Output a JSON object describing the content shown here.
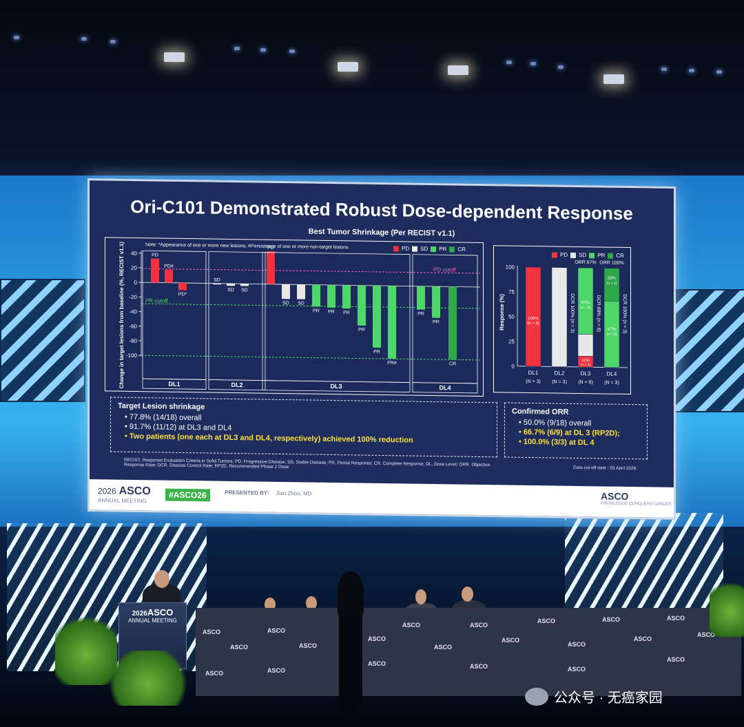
{
  "slide": {
    "title": "Ori-C101 Demonstrated Robust Dose-dependent Response",
    "subtitle": "Best Tumor Shrinkage (Per RECIST v1.1)",
    "note": "Note: *Appearance of one or more new lesions; #Persistence of one or more non-target lesions",
    "legend": [
      {
        "label": "PD",
        "color": "#ef3340"
      },
      {
        "label": "SD",
        "color": "#e8e8e8"
      },
      {
        "label": "PR",
        "color": "#4fd66b"
      },
      {
        "label": "CR",
        "color": "#2fa84a"
      }
    ],
    "waterfall": {
      "ylabel": "Change in target lesions from baseline (%, RECIST v1.1)",
      "yticks": [
        "40",
        "20",
        "0",
        "-20",
        "-40",
        "-60",
        "-80",
        "-100"
      ],
      "pd_cutoff_label": "PD cutoff",
      "pr_cutoff_label": "PR cutoff",
      "groups": [
        "DL1",
        "DL2",
        "DL3",
        "DL4"
      ]
    },
    "stacked": {
      "ylabel": "Response (%)",
      "yticks": [
        "100",
        "75",
        "50",
        "25",
        "0"
      ],
      "bars": [
        {
          "dl": "DL1",
          "n": "(N = 3)",
          "seg_label": "100%",
          "seg_n": "(n = 3)"
        },
        {
          "dl": "DL2",
          "n": "(N = 3)",
          "dcr": "DCR 100% (n = 3)"
        },
        {
          "dl": "DL3",
          "n": "(N = 9)",
          "orr": "ORR 67%",
          "dcr": "DCR 89% (n = 8)",
          "pd_pct": "11%",
          "pd_n": "(n = 1)",
          "pr_pct": "67%",
          "pr_n": "(n = 6)"
        },
        {
          "dl": "DL4",
          "n": "(N = 3)",
          "orr": "ORR 100%",
          "dcr": "DCR 100% (n = 3)",
          "cr_pct": "33%",
          "cr_n": "(n = 1)",
          "pr_pct": "67%",
          "pr_n": "(n = 2)"
        }
      ]
    },
    "target_box": {
      "title": "Target Lesion shrinkage",
      "lines": [
        "77.8% (14/18) overall",
        "91.7% (11/12) at DL3 and DL4"
      ],
      "highlight": "Two patients (one each at DL3 and DL4, respectively) achieved 100% reduction"
    },
    "orr_box": {
      "title": "Confirmed ORR",
      "line": "50.0% (9/18) overall",
      "highlights": [
        "66.7% (6/9) at DL 3 (RP2D);",
        "100.0% (3/3) at DL 4"
      ]
    },
    "abbrev": "RECIST, Response Evaluation Criteria in Solid Tumors; PD, Progressive Disease; SD, Stable Disease; PR, Partial Response; CR, Complete Response; DL, Dose Level; ORR, Objective Response Rate; DCR, Disease Control Rate; RP2D, Recommended Phase 2 Dose",
    "cutoff": "Data cut-off date : 03 April 2026",
    "footer": {
      "meeting_year": "2026",
      "meeting_brand": "ASCO",
      "meeting_sub": "ANNUAL MEETING",
      "hashtag": "#ASCO26",
      "presented_by": "PRESENTED BY:",
      "presenter": "Jian Zhou, MD",
      "right_brand": "ASCO",
      "right_sub": "KNOWLEDGE CONQUERS CANCER"
    }
  },
  "podium": {
    "year": "2026",
    "brand": "ASCO",
    "sub": "ANNUAL MEETING"
  },
  "table_brand": "ASCO",
  "watermark": "公众号 · 无癌家园"
}
